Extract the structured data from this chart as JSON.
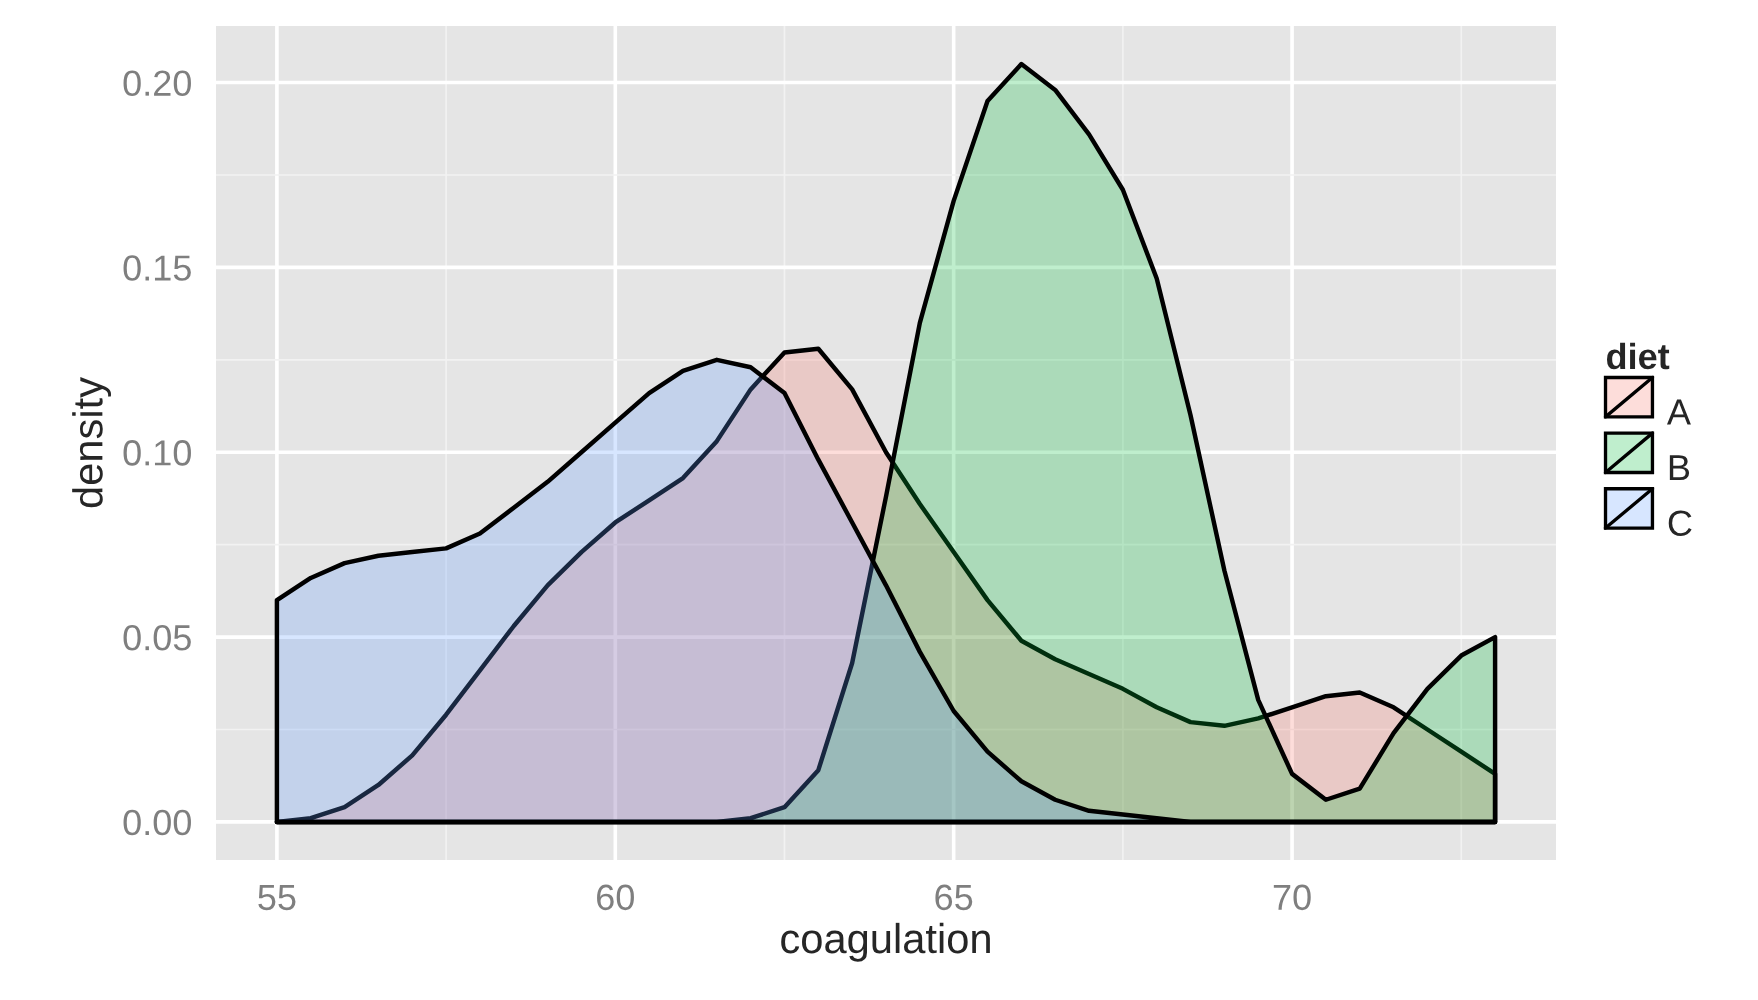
{
  "chart_data": {
    "type": "area",
    "xlabel": "coagulation",
    "ylabel": "density",
    "legend_title": "diet",
    "legend": "right",
    "grid": true,
    "x": [
      55,
      55.5,
      56,
      56.5,
      57,
      57.5,
      58,
      58.5,
      59,
      59.5,
      60,
      60.5,
      61,
      61.5,
      62,
      62.5,
      63,
      63.5,
      64,
      64.5,
      65,
      65.5,
      66,
      66.5,
      67,
      67.5,
      68,
      68.5,
      69,
      69.5,
      70,
      70.5,
      71,
      71.5,
      72,
      72.5,
      73
    ],
    "series": [
      {
        "name": "A",
        "color": "#f8766d",
        "values": [
          0.0,
          0.001,
          0.004,
          0.01,
          0.018,
          0.029,
          0.041,
          0.053,
          0.064,
          0.073,
          0.081,
          0.087,
          0.093,
          0.103,
          0.117,
          0.127,
          0.128,
          0.117,
          0.1,
          0.086,
          0.073,
          0.06,
          0.049,
          0.044,
          0.04,
          0.036,
          0.031,
          0.027,
          0.026,
          0.028,
          0.031,
          0.034,
          0.035,
          0.031,
          0.025,
          0.019,
          0.013
        ]
      },
      {
        "name": "B",
        "color": "#00ba38",
        "values": [
          0,
          0,
          0,
          0,
          0,
          0,
          0,
          0,
          0,
          0,
          0,
          0,
          0,
          0,
          0.001,
          0.004,
          0.014,
          0.043,
          0.088,
          0.135,
          0.168,
          0.195,
          0.205,
          0.198,
          0.186,
          0.171,
          0.147,
          0.11,
          0.068,
          0.033,
          0.013,
          0.006,
          0.009,
          0.024,
          0.036,
          0.045,
          0.05
        ]
      },
      {
        "name": "C",
        "color": "#619cff",
        "values": [
          0.06,
          0.066,
          0.07,
          0.072,
          0.073,
          0.074,
          0.078,
          0.085,
          0.092,
          0.1,
          0.108,
          0.116,
          0.122,
          0.125,
          0.123,
          0.116,
          0.098,
          0.081,
          0.064,
          0.046,
          0.03,
          0.019,
          0.011,
          0.006,
          0.003,
          0.002,
          0.001,
          0,
          0,
          0,
          0,
          0,
          0,
          0,
          0,
          0,
          0
        ]
      }
    ],
    "xlim": [
      54.1,
      73.9
    ],
    "xticks": [
      55,
      60,
      65,
      70
    ],
    "ylim": [
      -0.0103,
      0.2153
    ],
    "yticks": [
      {
        "value": 0,
        "label": "0.00"
      },
      {
        "value": 0.05,
        "label": "0.05"
      },
      {
        "value": 0.1,
        "label": "0.10"
      },
      {
        "value": 0.15,
        "label": "0.15"
      },
      {
        "value": 0.2,
        "label": "0.20"
      }
    ]
  }
}
